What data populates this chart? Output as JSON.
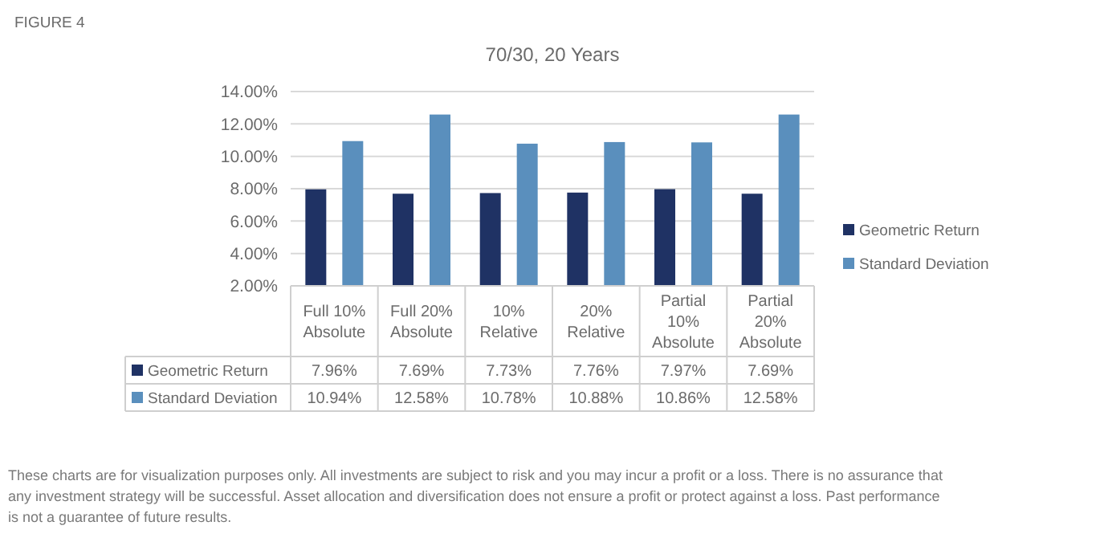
{
  "chart_data": {
    "type": "bar",
    "title": "70/30, 20 Years",
    "annotations": [
      "FIGURE 4",
      "These charts are for visualization purposes only. All investments are subject to risk and you may incur a profit or a loss. There is no assurance that any investment strategy will be successful. Asset allocation and diversification does not ensure a profit or protect against a loss. Past performance is not a guarantee of future results."
    ],
    "categories": [
      "Full 10% Absolute",
      "Full 20% Absolute",
      "10% Relative",
      "20% Relative",
      "Partial 10% Absolute",
      "Partial 20% Absolute"
    ],
    "series": [
      {
        "name": "Geometric Return",
        "color": "#1f3264",
        "values": [
          7.96,
          7.69,
          7.73,
          7.76,
          7.97,
          7.69
        ],
        "value_labels": [
          "7.96%",
          "7.69%",
          "7.73%",
          "7.76%",
          "7.97%",
          "7.69%"
        ]
      },
      {
        "name": "Standard Deviation",
        "color": "#5a8fbd",
        "values": [
          10.94,
          12.58,
          10.78,
          10.88,
          10.86,
          12.58
        ],
        "value_labels": [
          "10.94%",
          "12.58%",
          "10.78%",
          "10.88%",
          "10.86%",
          "12.58%"
        ]
      }
    ],
    "ylim": [
      2,
      14
    ],
    "yticks": [
      {
        "value": 2,
        "label": "2.00%"
      },
      {
        "value": 4,
        "label": "4.00%"
      },
      {
        "value": 6,
        "label": "6.00%"
      },
      {
        "value": 8,
        "label": "8.00%"
      },
      {
        "value": 10,
        "label": "10.00%"
      },
      {
        "value": 12,
        "label": "12.00%"
      },
      {
        "value": 14,
        "label": "14.00%"
      }
    ],
    "grid": "y",
    "legend": "right"
  }
}
